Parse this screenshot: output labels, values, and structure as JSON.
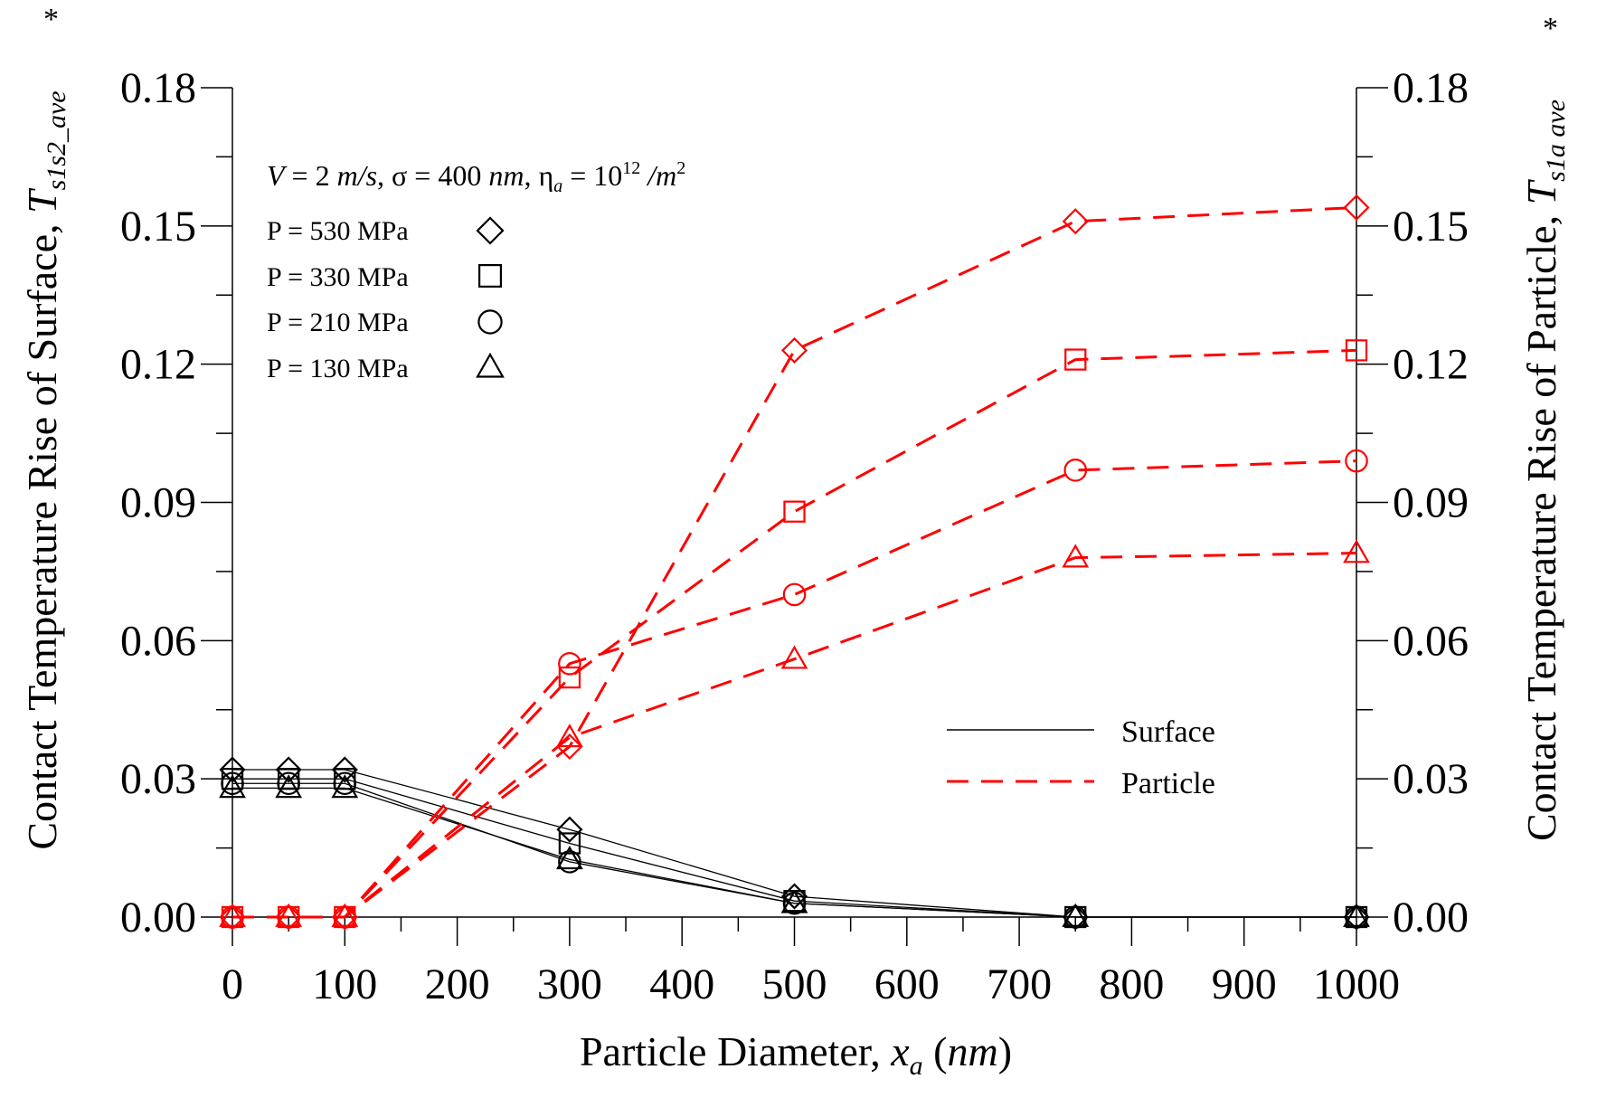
{
  "chart_data": {
    "type": "line",
    "xlabel": "Particle Diameter, x_a (nm)",
    "xlabel_main": "Particle Diameter, ",
    "xlabel_var": "x",
    "xlabel_sub": "a",
    "xlabel_unit": "nm",
    "ylabel_left_main": "Contact Temperature Rise of Surface, ",
    "ylabel_left_var": "T",
    "ylabel_left_sub": "s1s2_ave",
    "ylabel_left_sup": "*",
    "ylabel_right_main": "Contact Temperature Rise of Particle, ",
    "ylabel_right_var": "T",
    "ylabel_right_sub": "s1a ave",
    "ylabel_right_sup": "*",
    "xlim": [
      0,
      1000
    ],
    "ylim": [
      0,
      0.18
    ],
    "xticks": [
      0,
      100,
      200,
      300,
      400,
      500,
      600,
      700,
      800,
      900,
      1000
    ],
    "xtick_labels": [
      "0",
      "100",
      "200",
      "300",
      "400",
      "500",
      "600",
      "700",
      "800",
      "900",
      "1000"
    ],
    "yticks": [
      0,
      0.03,
      0.06,
      0.09,
      0.12,
      0.15,
      0.18
    ],
    "ytick_labels": [
      "0.00",
      "0.03",
      "0.06",
      "0.09",
      "0.12",
      "0.15",
      "0.18"
    ],
    "conditions": {
      "v_var": "V",
      "v_val": " = 2 ",
      "v_unit": "m/s",
      "sigma": ", σ = 400 ",
      "sigma_unit": "nm",
      "eta": ", η",
      "eta_sub": "a",
      "eta_val": " = 10",
      "eta_sup": "12",
      "eta_unit": " /m",
      "eta_unit_sup": "2"
    },
    "marker_legend": [
      {
        "label": "P = 530 MPa",
        "marker": "diamond"
      },
      {
        "label": "P = 330 MPa",
        "marker": "square"
      },
      {
        "label": "P = 210 MPa",
        "marker": "circle"
      },
      {
        "label": "P = 130 MPa",
        "marker": "triangle"
      }
    ],
    "line_legend": {
      "surface": "Surface",
      "particle": "Particle"
    },
    "colors": {
      "surface": "#000000",
      "particle": "#ff0000"
    },
    "x": [
      0,
      50,
      100,
      300,
      500,
      750,
      1000
    ],
    "series": [
      {
        "name": "Surface P = 530 MPa",
        "group": "surface",
        "marker": "diamond",
        "values": [
          0.032,
          0.032,
          0.032,
          0.019,
          0.0045,
          0.0,
          0.0
        ]
      },
      {
        "name": "Surface P = 330 MPa",
        "group": "surface",
        "marker": "square",
        "values": [
          0.03,
          0.03,
          0.03,
          0.016,
          0.0035,
          0.0,
          0.0
        ]
      },
      {
        "name": "Surface P = 210 MPa",
        "group": "surface",
        "marker": "circle",
        "values": [
          0.029,
          0.029,
          0.029,
          0.012,
          0.003,
          0.0,
          0.0
        ]
      },
      {
        "name": "Surface P = 130 MPa",
        "group": "surface",
        "marker": "triangle",
        "values": [
          0.028,
          0.028,
          0.028,
          0.0125,
          0.003,
          0.0,
          0.0
        ]
      },
      {
        "name": "Particle P = 530 MPa",
        "group": "particle",
        "marker": "diamond",
        "values": [
          0.0,
          0.0,
          0.0,
          0.037,
          0.123,
          0.151,
          0.154
        ]
      },
      {
        "name": "Particle P = 330 MPa",
        "group": "particle",
        "marker": "square",
        "values": [
          0.0,
          0.0,
          0.0,
          0.052,
          0.088,
          0.121,
          0.123
        ]
      },
      {
        "name": "Particle P = 210 MPa",
        "group": "particle",
        "marker": "circle",
        "values": [
          0.0,
          0.0,
          0.0,
          0.055,
          0.07,
          0.097,
          0.099
        ]
      },
      {
        "name": "Particle P = 130 MPa",
        "group": "particle",
        "marker": "triangle",
        "values": [
          0.0,
          0.0,
          0.0,
          0.039,
          0.056,
          0.078,
          0.079
        ]
      }
    ]
  }
}
